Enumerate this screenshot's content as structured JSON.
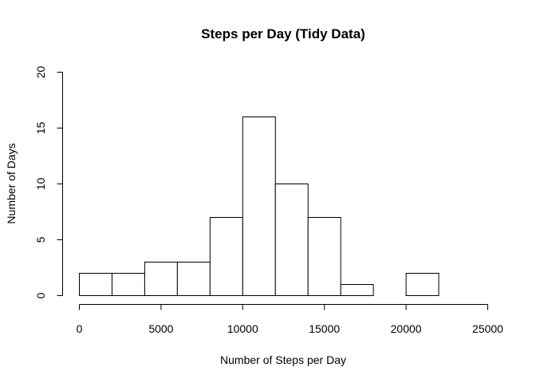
{
  "chart_data": {
    "type": "bar",
    "title": "Steps per Day (Tidy Data)",
    "xlabel": "Number of Steps per Day",
    "ylabel": "Number of Days",
    "xlim": [
      0,
      25000
    ],
    "ylim": [
      0,
      20
    ],
    "x_ticks": [
      0,
      5000,
      10000,
      15000,
      20000,
      25000
    ],
    "y_ticks": [
      0,
      5,
      10,
      15,
      20
    ],
    "bins": [
      {
        "start": 0,
        "end": 2000,
        "count": 2
      },
      {
        "start": 2000,
        "end": 4000,
        "count": 2
      },
      {
        "start": 4000,
        "end": 6000,
        "count": 3
      },
      {
        "start": 6000,
        "end": 8000,
        "count": 3
      },
      {
        "start": 8000,
        "end": 10000,
        "count": 7
      },
      {
        "start": 10000,
        "end": 12000,
        "count": 16
      },
      {
        "start": 12000,
        "end": 14000,
        "count": 10
      },
      {
        "start": 14000,
        "end": 16000,
        "count": 7
      },
      {
        "start": 16000,
        "end": 18000,
        "count": 1
      },
      {
        "start": 18000,
        "end": 20000,
        "count": 0
      },
      {
        "start": 20000,
        "end": 22000,
        "count": 2
      }
    ],
    "grid": false,
    "legend": "none"
  }
}
